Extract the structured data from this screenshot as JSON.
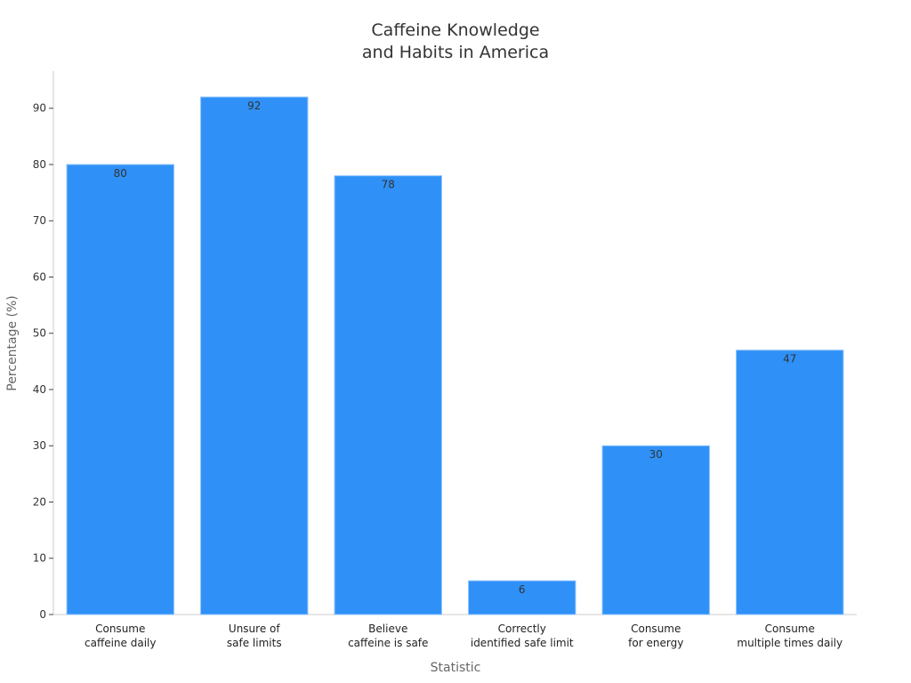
{
  "chart_data": {
    "type": "bar",
    "title": "Caffeine Knowledge\nand Habits in America",
    "x_label": "Statistic",
    "y_label": "Percentage (%)",
    "categories": [
      "Consume\ncaffeine daily",
      "Unsure of\nsafe limits",
      "Believe\ncaffeine is safe",
      "Correctly\nidentified safe limit",
      "Consume\nfor energy",
      "Consume\nmultiple times daily"
    ],
    "values": [
      80,
      92,
      78,
      6,
      30,
      47
    ],
    "color": "#2f91f8",
    "ylim": [
      0,
      96.6
    ],
    "yticks": [
      0,
      10,
      20,
      30,
      40,
      50,
      60,
      70,
      80,
      90
    ],
    "grid": false
  }
}
